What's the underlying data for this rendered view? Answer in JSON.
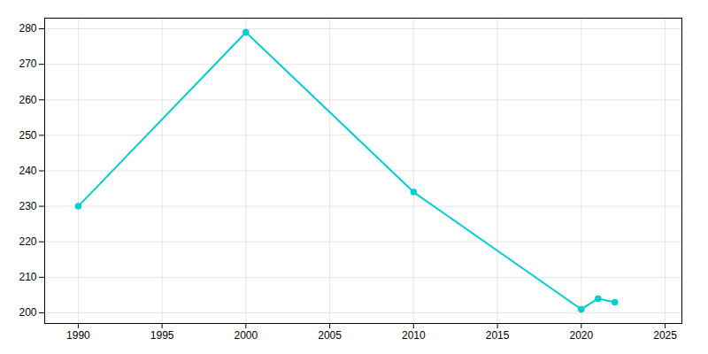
{
  "chart_data": {
    "type": "line",
    "x": [
      1990,
      2000,
      2010,
      2020,
      2021,
      2022
    ],
    "values": [
      230,
      279,
      234,
      201,
      204,
      203
    ],
    "color": "#00CED1",
    "marker": "circle",
    "xlim": [
      1988,
      2026
    ],
    "ylim": [
      197,
      283
    ],
    "xticks": [
      1990,
      1995,
      2000,
      2005,
      2010,
      2015,
      2020,
      2025
    ],
    "yticks": [
      200,
      210,
      220,
      230,
      240,
      250,
      260,
      270,
      280
    ],
    "grid": true
  }
}
